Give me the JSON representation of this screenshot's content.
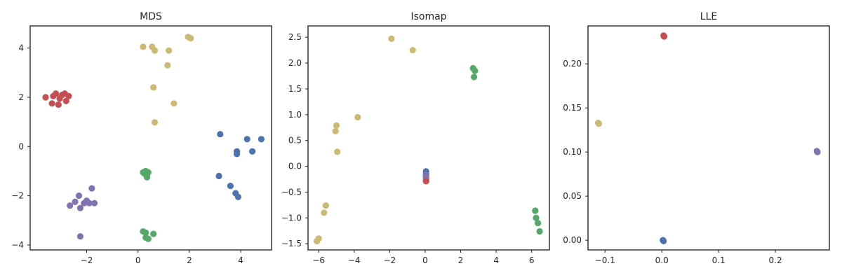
{
  "chart_data": [
    {
      "type": "scatter",
      "title": "MDS",
      "xlabel": "",
      "ylabel": "",
      "xlim": [
        -4.2,
        5.2
      ],
      "ylim": [
        -4.2,
        4.9
      ],
      "xticks": [
        -2,
        0,
        2,
        4
      ],
      "yticks": [
        -4,
        -2,
        0,
        2,
        4
      ],
      "grid": false,
      "series": [
        {
          "color": "#c44e52",
          "points": [
            [
              -3.6,
              2.0
            ],
            [
              -3.35,
              1.75
            ],
            [
              -3.3,
              2.05
            ],
            [
              -3.2,
              2.15
            ],
            [
              -3.1,
              1.7
            ],
            [
              -3.05,
              1.95
            ],
            [
              -2.95,
              2.1
            ],
            [
              -2.85,
              2.15
            ],
            [
              -2.8,
              1.85
            ],
            [
              -2.7,
              2.05
            ]
          ]
        },
        {
          "color": "#ccb974",
          "points": [
            [
              0.2,
              4.05
            ],
            [
              0.55,
              4.05
            ],
            [
              0.65,
              3.9
            ],
            [
              1.2,
              3.9
            ],
            [
              1.95,
              4.45
            ],
            [
              2.05,
              4.4
            ],
            [
              1.15,
              3.3
            ],
            [
              0.6,
              2.4
            ],
            [
              1.4,
              1.75
            ],
            [
              0.65,
              0.98
            ]
          ]
        },
        {
          "color": "#4c72b0",
          "points": [
            [
              3.2,
              0.5
            ],
            [
              4.25,
              0.3
            ],
            [
              4.8,
              0.3
            ],
            [
              3.85,
              -0.2
            ],
            [
              4.45,
              -0.2
            ],
            [
              3.85,
              -0.3
            ],
            [
              3.15,
              -1.2
            ],
            [
              3.6,
              -1.6
            ],
            [
              3.8,
              -1.9
            ],
            [
              3.9,
              -2.05
            ]
          ]
        },
        {
          "color": "#55a868",
          "points": [
            [
              0.2,
              -1.05
            ],
            [
              0.3,
              -1.0
            ],
            [
              0.35,
              -1.15
            ],
            [
              0.4,
              -1.05
            ],
            [
              0.35,
              -1.25
            ],
            [
              0.25,
              -1.1
            ],
            [
              0.2,
              -3.45
            ],
            [
              0.3,
              -3.5
            ],
            [
              0.3,
              -3.7
            ],
            [
              0.4,
              -3.75
            ],
            [
              0.6,
              -3.55
            ]
          ]
        },
        {
          "color": "#8172b2",
          "points": [
            [
              -2.65,
              -2.4
            ],
            [
              -2.45,
              -2.25
            ],
            [
              -2.3,
              -2.0
            ],
            [
              -2.25,
              -2.5
            ],
            [
              -2.1,
              -2.3
            ],
            [
              -2.0,
              -2.2
            ],
            [
              -1.9,
              -2.3
            ],
            [
              -1.8,
              -1.7
            ],
            [
              -1.7,
              -2.3
            ],
            [
              -2.25,
              -3.65
            ]
          ]
        }
      ]
    },
    {
      "type": "scatter",
      "title": "Isomap",
      "xlabel": "",
      "ylabel": "",
      "xlim": [
        -6.6,
        7.0
      ],
      "ylim": [
        -1.62,
        2.72
      ],
      "xticks": [
        -6,
        -4,
        -2,
        0,
        2,
        4,
        6
      ],
      "yticks": [
        -1.5,
        -1.0,
        -0.5,
        0.0,
        0.5,
        1.0,
        1.5,
        2.0,
        2.5
      ],
      "grid": false,
      "series": [
        {
          "color": "#ccb974",
          "points": [
            [
              -1.9,
              2.47
            ],
            [
              -0.7,
              2.25
            ],
            [
              -3.8,
              0.95
            ],
            [
              -5.0,
              0.79
            ],
            [
              -5.05,
              0.68
            ],
            [
              -4.95,
              0.28
            ],
            [
              -5.6,
              -0.76
            ],
            [
              -5.7,
              -0.9
            ],
            [
              -6.0,
              -1.4
            ],
            [
              -6.1,
              -1.45
            ]
          ]
        },
        {
          "color": "#55a868",
          "points": [
            [
              2.7,
              1.9
            ],
            [
              2.8,
              1.85
            ],
            [
              2.75,
              1.73
            ],
            [
              6.2,
              -0.86
            ],
            [
              6.25,
              -1.0
            ],
            [
              6.35,
              -1.1
            ],
            [
              6.45,
              -1.26
            ]
          ]
        },
        {
          "color": "#4c72b0",
          "points": [
            [
              0.05,
              -0.1
            ],
            [
              0.05,
              -0.15
            ],
            [
              0.05,
              -0.2
            ]
          ]
        },
        {
          "color": "#8172b2",
          "points": [
            [
              0.05,
              -0.17
            ],
            [
              0.05,
              -0.22
            ],
            [
              0.05,
              -0.26
            ]
          ]
        },
        {
          "color": "#c44e52",
          "points": [
            [
              0.05,
              -0.29
            ]
          ]
        }
      ]
    },
    {
      "type": "scatter",
      "title": "LLE",
      "xlabel": "",
      "ylabel": "",
      "xlim": [
        -0.13,
        0.295
      ],
      "ylim": [
        -0.011,
        0.243
      ],
      "xticks": [
        -0.1,
        0.0,
        0.1,
        0.2
      ],
      "yticks": [
        0.0,
        0.05,
        0.1,
        0.15,
        0.2
      ],
      "grid": false,
      "series": [
        {
          "color": "#c44e52",
          "points": [
            [
              0.003,
              0.232
            ],
            [
              0.004,
              0.231
            ]
          ]
        },
        {
          "color": "#ccb974",
          "points": [
            [
              -0.112,
              0.133
            ],
            [
              -0.111,
              0.132
            ]
          ]
        },
        {
          "color": "#8172b2",
          "points": [
            [
              0.273,
              0.101
            ],
            [
              0.274,
              0.1
            ]
          ]
        },
        {
          "color": "#4c72b0",
          "points": [
            [
              0.002,
              0.0
            ],
            [
              0.003,
              -0.001
            ]
          ]
        }
      ]
    }
  ]
}
